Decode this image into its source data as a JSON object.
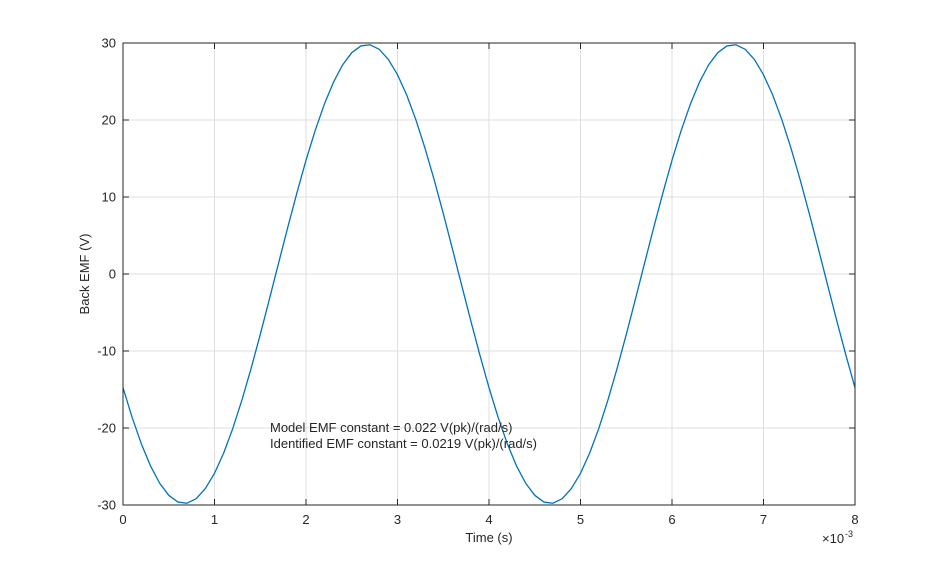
{
  "chart_data": {
    "type": "line",
    "xlabel": "Time (s)",
    "ylabel": "Back EMF (V)",
    "x_exponent": {
      "base": "×10",
      "power": "-3"
    },
    "annotations": [
      "Model EMF constant = 0.022 V(pk)/(rad/s)",
      "Identified EMF constant = 0.0219 V(pk)/(rad/s)"
    ],
    "x": [
      0,
      0.1,
      0.2,
      0.3,
      0.4,
      0.5,
      0.6,
      0.7,
      0.8,
      0.9,
      1,
      1.1,
      1.2,
      1.3,
      1.4,
      1.5,
      1.6,
      1.7,
      1.8,
      1.9,
      2,
      2.1,
      2.2,
      2.3,
      2.4,
      2.5,
      2.6,
      2.7,
      2.8,
      2.9,
      3,
      3.1,
      3.2,
      3.3,
      3.4,
      3.5,
      3.6,
      3.7,
      3.8,
      3.9,
      4,
      4.1,
      4.2,
      4.3,
      4.4,
      4.5,
      4.6,
      4.7,
      4.8,
      4.9,
      5,
      5.1,
      5.2,
      5.3,
      5.4,
      5.5,
      5.6,
      5.7,
      5.8,
      5.9,
      6,
      6.1,
      6.2,
      6.3,
      6.4,
      6.5,
      6.6,
      6.7,
      6.8,
      6.9,
      7,
      7.1,
      7.2,
      7.3,
      7.4,
      7.5,
      7.6,
      7.7,
      7.8,
      7.9,
      8
    ],
    "values": [
      -14.77,
      -18.63,
      -22.04,
      -24.91,
      -27.16,
      -28.74,
      -29.62,
      -29.77,
      -29.18,
      -27.87,
      -25.88,
      -23.26,
      -20.06,
      -16.36,
      -12.26,
      -7.86,
      -3.27,
      1.4,
      6.03,
      10.51,
      14.77,
      18.63,
      22.04,
      24.91,
      27.16,
      28.74,
      29.62,
      29.77,
      29.18,
      27.87,
      25.88,
      23.26,
      20.06,
      16.36,
      12.26,
      7.86,
      3.27,
      -1.4,
      -6.03,
      -10.51,
      -14.77,
      -18.63,
      -22.04,
      -24.91,
      -27.16,
      -28.74,
      -29.62,
      -29.77,
      -29.18,
      -27.87,
      -25.88,
      -23.26,
      -20.06,
      -16.36,
      -12.26,
      -7.86,
      -3.27,
      1.4,
      6.03,
      10.51,
      14.77,
      18.63,
      22.04,
      24.91,
      27.16,
      28.74,
      29.62,
      29.77,
      29.18,
      27.87,
      25.88,
      23.26,
      20.06,
      16.36,
      12.26,
      7.86,
      3.27,
      -1.4,
      -6.03,
      -10.51,
      -14.77
    ],
    "color": "#0072bd",
    "xlim": [
      0,
      8
    ],
    "xticks": [
      0,
      1,
      2,
      3,
      4,
      5,
      6,
      7,
      8
    ],
    "ylim": [
      -30,
      30
    ],
    "yticks": [
      -30,
      -20,
      -10,
      0,
      10,
      20,
      30
    ],
    "grid": true
  }
}
